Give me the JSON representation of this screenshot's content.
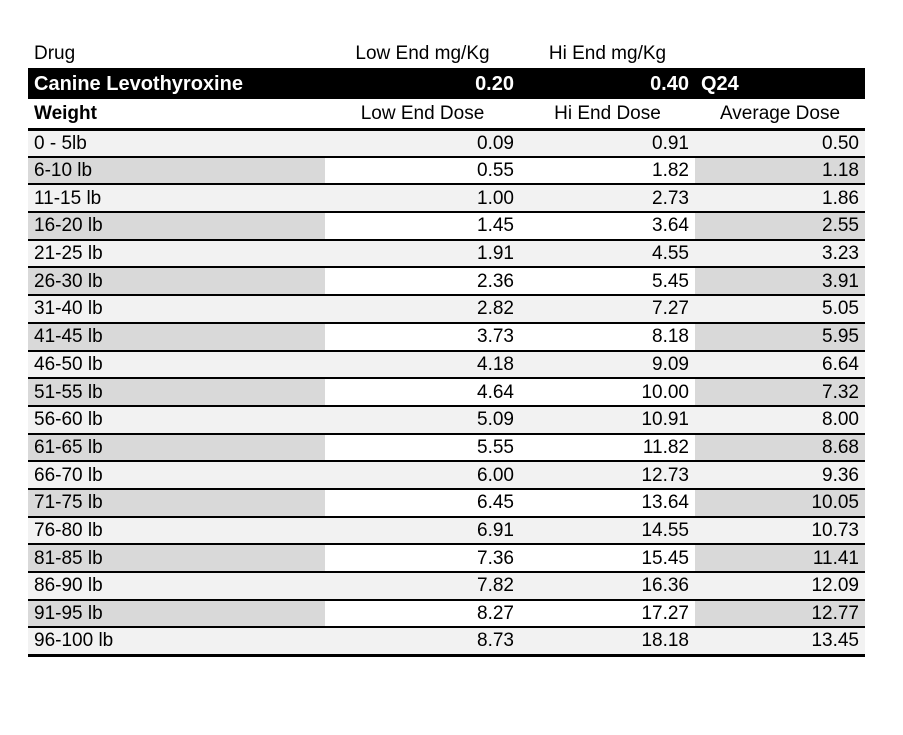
{
  "header": {
    "drug_label": "Drug",
    "low_end_label": "Low End mg/Kg",
    "hi_end_label": "Hi End mg/Kg"
  },
  "drug": {
    "name": "Canine Levothyroxine",
    "low_end": "0.20",
    "hi_end": "0.40",
    "frequency": "Q24"
  },
  "dose_header": {
    "weight_label": "Weight",
    "low_label": "Low End Dose",
    "hi_label": "Hi End Dose",
    "avg_label": "Average Dose"
  },
  "rows": [
    {
      "weight": "0 - 5lb",
      "low": "0.09",
      "hi": "0.91",
      "avg": "0.50"
    },
    {
      "weight": "6-10 lb",
      "low": "0.55",
      "hi": "1.82",
      "avg": "1.18"
    },
    {
      "weight": "11-15 lb",
      "low": "1.00",
      "hi": "2.73",
      "avg": "1.86"
    },
    {
      "weight": "16-20 lb",
      "low": "1.45",
      "hi": "3.64",
      "avg": "2.55"
    },
    {
      "weight": "21-25 lb",
      "low": "1.91",
      "hi": "4.55",
      "avg": "3.23"
    },
    {
      "weight": "26-30 lb",
      "low": "2.36",
      "hi": "5.45",
      "avg": "3.91"
    },
    {
      "weight": "31-40 lb",
      "low": "2.82",
      "hi": "7.27",
      "avg": "5.05"
    },
    {
      "weight": "41-45 lb",
      "low": "3.73",
      "hi": "8.18",
      "avg": "5.95"
    },
    {
      "weight": "46-50 lb",
      "low": "4.18",
      "hi": "9.09",
      "avg": "6.64"
    },
    {
      "weight": "51-55 lb",
      "low": "4.64",
      "hi": "10.00",
      "avg": "7.32"
    },
    {
      "weight": "56-60 lb",
      "low": "5.09",
      "hi": "10.91",
      "avg": "8.00"
    },
    {
      "weight": "61-65 lb",
      "low": "5.55",
      "hi": "11.82",
      "avg": "8.68"
    },
    {
      "weight": "66-70 lb",
      "low": "6.00",
      "hi": "12.73",
      "avg": "9.36"
    },
    {
      "weight": "71-75 lb",
      "low": "6.45",
      "hi": "13.64",
      "avg": "10.05"
    },
    {
      "weight": "76-80 lb",
      "low": "6.91",
      "hi": "14.55",
      "avg": "10.73"
    },
    {
      "weight": "81-85 lb",
      "low": "7.36",
      "hi": "15.45",
      "avg": "11.41"
    },
    {
      "weight": "86-90 lb",
      "low": "7.82",
      "hi": "16.36",
      "avg": "12.09"
    },
    {
      "weight": "91-95 lb",
      "low": "8.27",
      "hi": "17.27",
      "avg": "12.77"
    },
    {
      "weight": "96-100 lb",
      "low": "8.73",
      "hi": "18.18",
      "avg": "13.45"
    }
  ],
  "colors": {
    "band_bg": "#000000",
    "band_fg": "#ffffff",
    "row_light": "#f2f2f2",
    "row_dark": "#d9d9d9",
    "border": "#000000",
    "page_bg": "#ffffff"
  },
  "chart_data": {
    "type": "table",
    "title": "Canine Levothyroxine dosing table",
    "drug_row": {
      "drug": "Canine Levothyroxine",
      "low_end_mg_kg": 0.2,
      "hi_end_mg_kg": 0.4,
      "frequency": "Q24"
    },
    "columns": [
      "Weight",
      "Low End Dose",
      "Hi End Dose",
      "Average Dose"
    ],
    "rows": [
      [
        "0 - 5lb",
        0.09,
        0.91,
        0.5
      ],
      [
        "6-10 lb",
        0.55,
        1.82,
        1.18
      ],
      [
        "11-15 lb",
        1.0,
        2.73,
        1.86
      ],
      [
        "16-20 lb",
        1.45,
        3.64,
        2.55
      ],
      [
        "21-25 lb",
        1.91,
        4.55,
        3.23
      ],
      [
        "26-30 lb",
        2.36,
        5.45,
        3.91
      ],
      [
        "31-40 lb",
        2.82,
        7.27,
        5.05
      ],
      [
        "41-45 lb",
        3.73,
        8.18,
        5.95
      ],
      [
        "46-50 lb",
        4.18,
        9.09,
        6.64
      ],
      [
        "51-55 lb",
        4.64,
        10.0,
        7.32
      ],
      [
        "56-60 lb",
        5.09,
        10.91,
        8.0
      ],
      [
        "61-65 lb",
        5.55,
        11.82,
        8.68
      ],
      [
        "66-70 lb",
        6.0,
        12.73,
        9.36
      ],
      [
        "71-75 lb",
        6.45,
        13.64,
        10.05
      ],
      [
        "76-80 lb",
        6.91,
        14.55,
        10.73
      ],
      [
        "81-85 lb",
        7.36,
        15.45,
        11.41
      ],
      [
        "86-90 lb",
        7.82,
        16.36,
        12.09
      ],
      [
        "91-95 lb",
        8.27,
        17.27,
        12.77
      ],
      [
        "96-100 lb",
        8.73,
        18.18,
        13.45
      ]
    ]
  }
}
